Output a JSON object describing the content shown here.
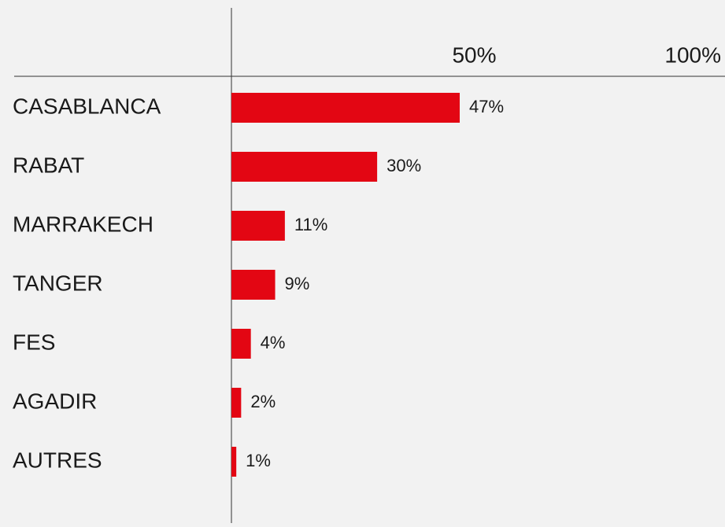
{
  "chart_data": {
    "type": "bar",
    "orientation": "horizontal",
    "categories": [
      "CASABLANCA",
      "RABAT",
      "MARRAKECH",
      "TANGER",
      "FES",
      "AGADIR",
      "AUTRES"
    ],
    "values": [
      47,
      30,
      11,
      9,
      4,
      2,
      1
    ],
    "value_labels": [
      "47%",
      "30%",
      "11%",
      "9%",
      "4%",
      "2%",
      "1%"
    ],
    "color": "#e30613",
    "xlim": [
      0,
      100
    ],
    "xticks": [
      {
        "value": 50,
        "label": "50%"
      },
      {
        "value": 100,
        "label": "100%"
      }
    ]
  }
}
